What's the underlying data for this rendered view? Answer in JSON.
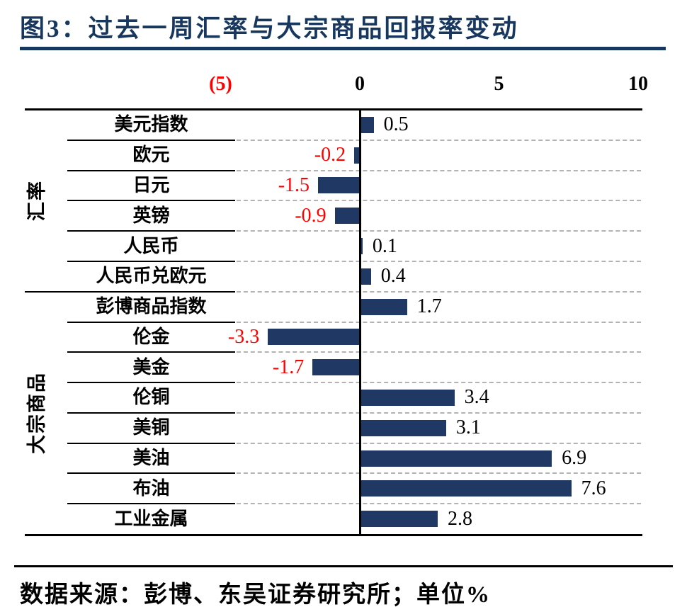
{
  "title": "图3：过去一周汇率与大宗商品回报率变动",
  "footer": "数据来源：彭博、东吴证券研究所；单位%",
  "colors": {
    "title_accent": "#17375E",
    "bar": "#1F3864",
    "negative_label": "#FF0000",
    "gridline": "#B3B3B3"
  },
  "chart_data": {
    "type": "bar",
    "orientation": "horizontal",
    "unit": "%",
    "xlim": [
      -5,
      10
    ],
    "grid": "dashed-horizontal",
    "x_ticks": [
      {
        "label": "(5)",
        "value": -5
      },
      {
        "label": "0",
        "value": 0
      },
      {
        "label": "5",
        "value": 5
      },
      {
        "label": "10",
        "value": 10
      }
    ],
    "groups": [
      {
        "name": "汇率",
        "items": [
          {
            "label": "美元指数",
            "value": 0.5
          },
          {
            "label": "欧元",
            "value": -0.2
          },
          {
            "label": "日元",
            "value": -1.5
          },
          {
            "label": "英镑",
            "value": -0.9
          },
          {
            "label": "人民币",
            "value": 0.1
          },
          {
            "label": "人民币兑欧元",
            "value": 0.4
          }
        ]
      },
      {
        "name": "大宗商品",
        "items": [
          {
            "label": "彭博商品指数",
            "value": 1.7
          },
          {
            "label": "伦金",
            "value": -3.3
          },
          {
            "label": "美金",
            "value": -1.7
          },
          {
            "label": "伦铜",
            "value": 3.4
          },
          {
            "label": "美铜",
            "value": 3.1
          },
          {
            "label": "美油",
            "value": 6.9
          },
          {
            "label": "布油",
            "value": 7.6
          },
          {
            "label": "工业金属",
            "value": 2.8
          }
        ]
      }
    ]
  }
}
